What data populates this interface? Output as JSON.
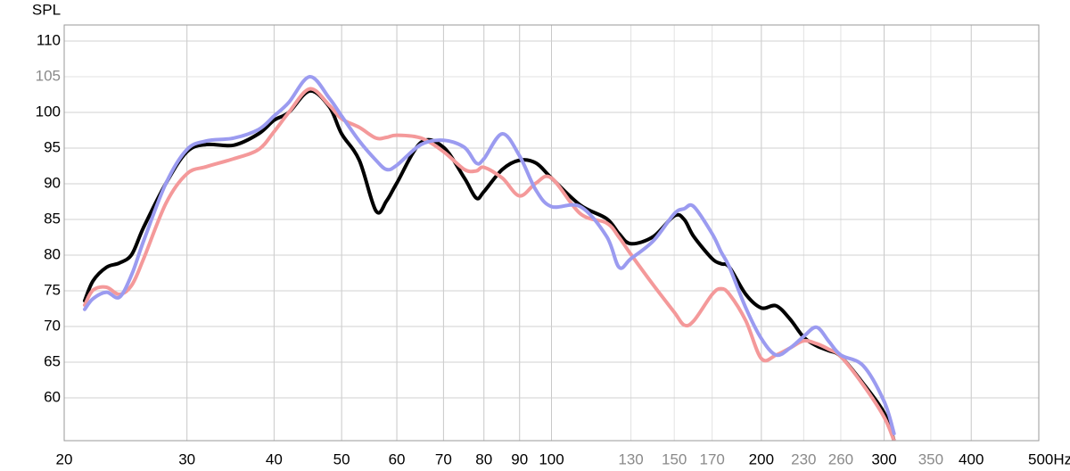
{
  "chart_data": {
    "type": "line",
    "y_label": "SPL",
    "xscale": "log",
    "xlim": [
      20,
      500
    ],
    "ylim": [
      54,
      112.25
    ],
    "xticks": [
      20,
      30,
      40,
      50,
      60,
      70,
      80,
      90,
      100,
      200,
      300,
      400,
      {
        "value": 500,
        "label": "500Hz"
      }
    ],
    "xticks_light": [
      130,
      150,
      170,
      230,
      260,
      350
    ],
    "yticks": [
      60,
      65,
      70,
      75,
      80,
      85,
      90,
      95,
      100,
      110
    ],
    "yticks_light": [
      105
    ],
    "light_tick_color": "#8a8a8a",
    "grid": true,
    "x": [
      21.4,
      22,
      23,
      24,
      25,
      26,
      28,
      30,
      32,
      35,
      38,
      40,
      42,
      45,
      48,
      50,
      53,
      56,
      58,
      60,
      65,
      70,
      75,
      78,
      80,
      85,
      90,
      95,
      100,
      110,
      120,
      125,
      130,
      140,
      150,
      155,
      160,
      170,
      175,
      180,
      190,
      200,
      210,
      220,
      230,
      240,
      250,
      260,
      280,
      300,
      310
    ],
    "series": [
      {
        "color": "#000000",
        "values": [
          73.6,
          76.4,
          78.3,
          78.9,
          80.1,
          83.9,
          90.1,
          94.5,
          95.5,
          95.4,
          97,
          98.9,
          100,
          103,
          100.8,
          97,
          93.3,
          86.2,
          87.6,
          90.1,
          95.8,
          95.1,
          90.8,
          88,
          88.9,
          92,
          93.3,
          92.9,
          90.8,
          87,
          85.1,
          83,
          81.6,
          82.6,
          85.5,
          85,
          82.6,
          79.5,
          78.8,
          78.3,
          74.5,
          72.6,
          72.9,
          71,
          68.5,
          67.3,
          66.6,
          65.8,
          62,
          57.9,
          54
        ]
      },
      {
        "color": "#f4999a",
        "values": [
          73,
          75.1,
          75.5,
          74.5,
          75.8,
          79.5,
          87.3,
          91.4,
          92.4,
          93.5,
          94.8,
          97.3,
          100,
          103.3,
          101,
          99.1,
          97.9,
          96.4,
          96.5,
          96.8,
          96.4,
          94.5,
          92,
          91.8,
          92.3,
          90.8,
          88.3,
          90.1,
          90.8,
          85.8,
          84.5,
          82.5,
          80.1,
          75.8,
          72,
          70.2,
          70.8,
          74.5,
          75.3,
          74.5,
          70.8,
          65.5,
          66,
          67,
          68,
          67.6,
          66.8,
          65.8,
          61.8,
          57.3,
          54
        ]
      },
      {
        "color": "#9b9bf0",
        "values": [
          72.4,
          73.9,
          74.8,
          74.1,
          77.3,
          82,
          90.1,
          94.8,
          96,
          96.4,
          97.6,
          99.5,
          101.4,
          105,
          102,
          99.5,
          96,
          93.3,
          92,
          92.6,
          95.5,
          96.1,
          95.1,
          92.9,
          93.5,
          97,
          93.9,
          89.1,
          86.8,
          86.8,
          82.6,
          78.3,
          79.5,
          82,
          85.8,
          86.5,
          86.8,
          83,
          80.5,
          78.3,
          72.6,
          68.3,
          66,
          67,
          68.6,
          69.9,
          67.9,
          66,
          64.5,
          59.5,
          55
        ]
      }
    ]
  }
}
